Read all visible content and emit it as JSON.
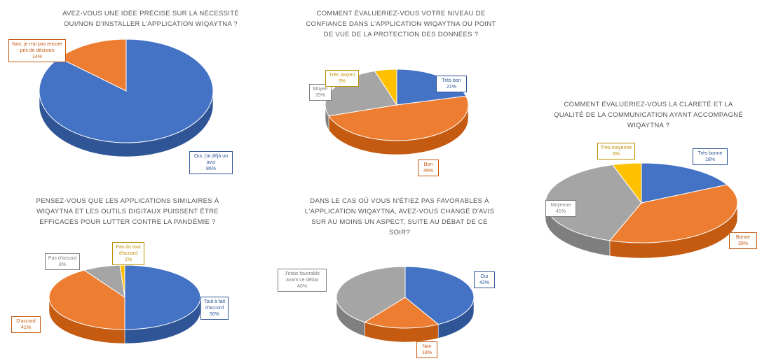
{
  "colors": {
    "blue": "#4472C4",
    "blue_side": "#2F5597",
    "orange": "#ED7D31",
    "orange_side": "#C55A11",
    "gray": "#A5A5A5",
    "gray_side": "#7F7F7F",
    "gold": "#FFC000",
    "gold_side": "#BF9000",
    "label_blue": "#2F5597",
    "label_orange": "#C55A11",
    "label_gray": "#7F7F7F",
    "label_gold": "#BF9000"
  },
  "chart_data": [
    {
      "id": "c1",
      "type": "pie",
      "title": [
        "AVEZ-VOUS UNE IDÉE PRÉCISE SUR LA NÉCESSITÉ",
        "OUI/NON D'INSTALLER L'APPLICATION WIQAYTNA ?"
      ],
      "slices": [
        {
          "label": "Oui, j'ai déjà un avis",
          "pct_text": "86%",
          "value": 86,
          "color": "blue"
        },
        {
          "label": "Non, je n'ai pas encore pris de décision",
          "pct_text": "14%",
          "value": 14,
          "color": "orange"
        }
      ]
    },
    {
      "id": "c2",
      "type": "pie",
      "title": [
        "COMMENT ÉVALUERIEZ-VOUS VOTRE NIVEAU DE",
        "CONFIANCE DANS L'APPLICATION WIQAYTNA OU POINT",
        "DE VUE DE LA PROTECTION DES DONNÉES ?"
      ],
      "slices": [
        {
          "label": "Très bon",
          "pct_text": "21%",
          "value": 21,
          "color": "blue"
        },
        {
          "label": "Bon",
          "pct_text": "49%",
          "value": 49,
          "color": "orange"
        },
        {
          "label": "Moyen",
          "pct_text": "25%",
          "value": 25,
          "color": "gray"
        },
        {
          "label": "Très moyen",
          "pct_text": "5%",
          "value": 5,
          "color": "gold"
        }
      ]
    },
    {
      "id": "c3",
      "type": "pie",
      "title": [
        "COMMENT ÉVALUERIEZ-VOUS LA CLARETÉ ET LA",
        "QUALITÉ DE LA COMMUNICATION AYANT ACCOMPAGNÉ",
        "WIQAYTNA ?"
      ],
      "slices": [
        {
          "label": "Très bonne",
          "pct_text": "18%",
          "value": 18,
          "color": "blue"
        },
        {
          "label": "Bonne",
          "pct_text": "39%",
          "value": 39,
          "color": "orange"
        },
        {
          "label": "Moyenne",
          "pct_text": "41%",
          "value": 41,
          "color": "gray"
        },
        {
          "label": "Très moyenne",
          "pct_text": "5%",
          "value": 5,
          "color": "gold"
        }
      ]
    },
    {
      "id": "c4",
      "type": "pie",
      "title": [
        "PENSEZ-VOUS QUE LES APPLICATIONS SIMILAIRES À",
        "WIQAYTNA ET LES OUTILS DIGITAUX PUISSENT ÊTRE",
        "EFFICACES POUR LUTTER CONTRE LA PANDÉMIE ?"
      ],
      "slices": [
        {
          "label": "Tout à fait d'accord",
          "pct_text": "50%",
          "value": 50,
          "color": "blue"
        },
        {
          "label": "D'accord",
          "pct_text": "41%",
          "value": 41,
          "color": "orange"
        },
        {
          "label": "Pas d'accord",
          "pct_text": "8%",
          "value": 8,
          "color": "gray"
        },
        {
          "label": "Pas du tout d'accord",
          "pct_text": "1%",
          "value": 1,
          "color": "gold"
        }
      ]
    },
    {
      "id": "c5",
      "type": "pie",
      "title": [
        "DANS LE CAS OÙ VOUS N'ÉTIEZ PAS FAVORABLES À",
        "L'APPLICATION WIQAYTNA, AVEZ-VOUS CHANGÉ D'AVIS",
        "SUR AU MOINS UN ASPECT, SUITE AU DÉBAT DE CE",
        "SOIR?"
      ],
      "slices": [
        {
          "label": "Oui",
          "pct_text": "42%",
          "value": 42,
          "color": "blue"
        },
        {
          "label": "Non",
          "pct_text": "18%",
          "value": 18,
          "color": "orange"
        },
        {
          "label": "J'étais favorable avant ce débat",
          "pct_text": "40%",
          "value": 40,
          "color": "gray"
        }
      ]
    }
  ]
}
